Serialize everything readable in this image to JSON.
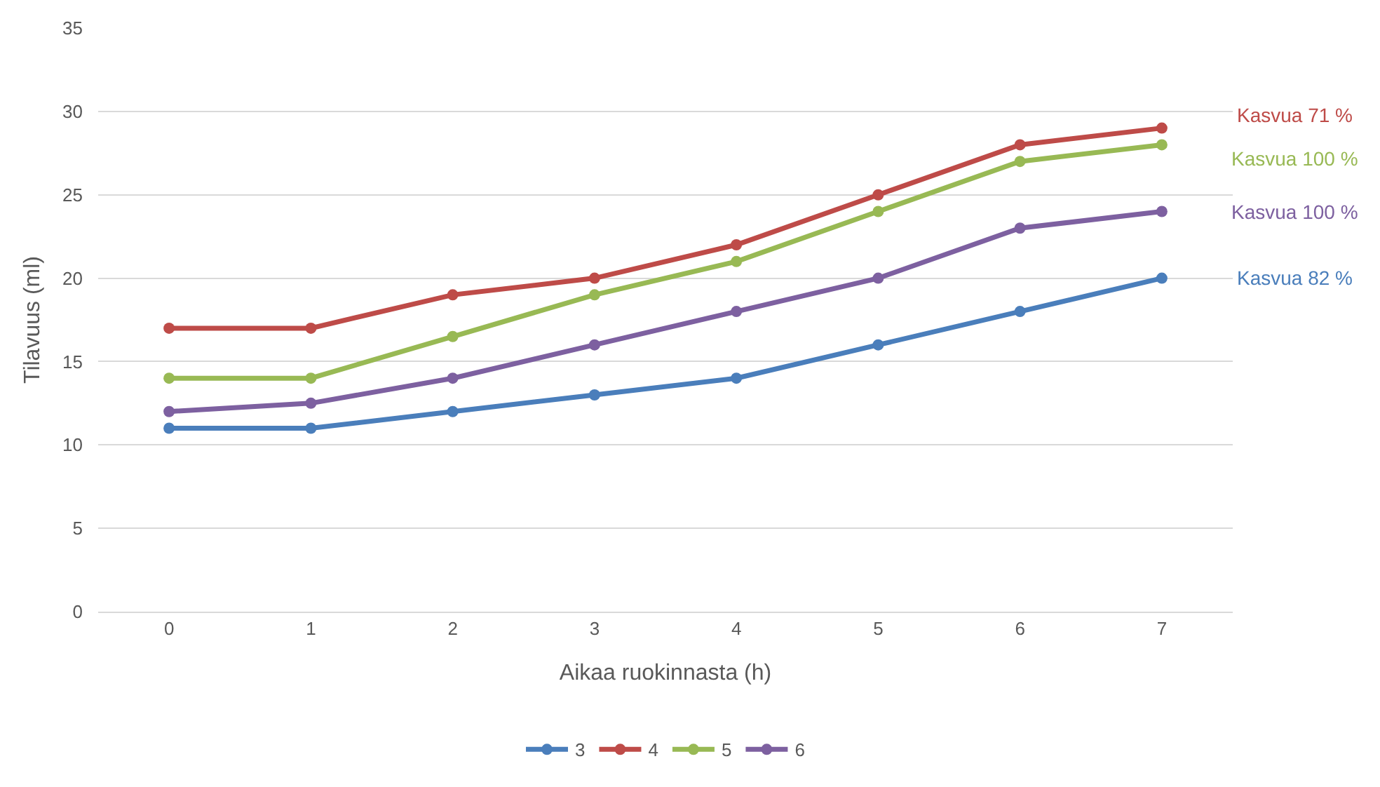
{
  "chart_data": {
    "type": "line",
    "xlabel": "Aikaa ruokinnasta (h)",
    "ylabel": "Tilavuus (ml)",
    "x": [
      0,
      1,
      2,
      3,
      4,
      5,
      6,
      7
    ],
    "series": [
      {
        "name": "3",
        "color": "#4a7ebb",
        "values": [
          11,
          11,
          12,
          13,
          14,
          16,
          18,
          20
        ]
      },
      {
        "name": "4",
        "color": "#be4b48",
        "values": [
          17,
          17,
          19,
          20,
          22,
          25,
          28,
          29
        ]
      },
      {
        "name": "5",
        "color": "#98b954",
        "values": [
          14,
          14,
          16.5,
          19,
          21,
          24,
          27,
          28
        ]
      },
      {
        "name": "6",
        "color": "#7d60a0",
        "values": [
          12,
          12.5,
          14,
          16,
          18,
          20,
          23,
          24
        ]
      }
    ],
    "annotations": [
      "Kasvua 71 %",
      "Kasvua 100 %",
      "Kasvua 100 %",
      "Kasvua 82 %"
    ],
    "xlim": [
      -0.5,
      7.5
    ],
    "xticks": [
      0,
      1,
      2,
      3,
      4,
      5,
      6,
      7
    ],
    "ylim": [
      0,
      35
    ],
    "yticks": [
      0,
      5,
      10,
      15,
      20,
      25,
      30,
      35
    ],
    "grid": "y",
    "legend": "bottom",
    "marker": "circle",
    "line_style": "solid"
  }
}
